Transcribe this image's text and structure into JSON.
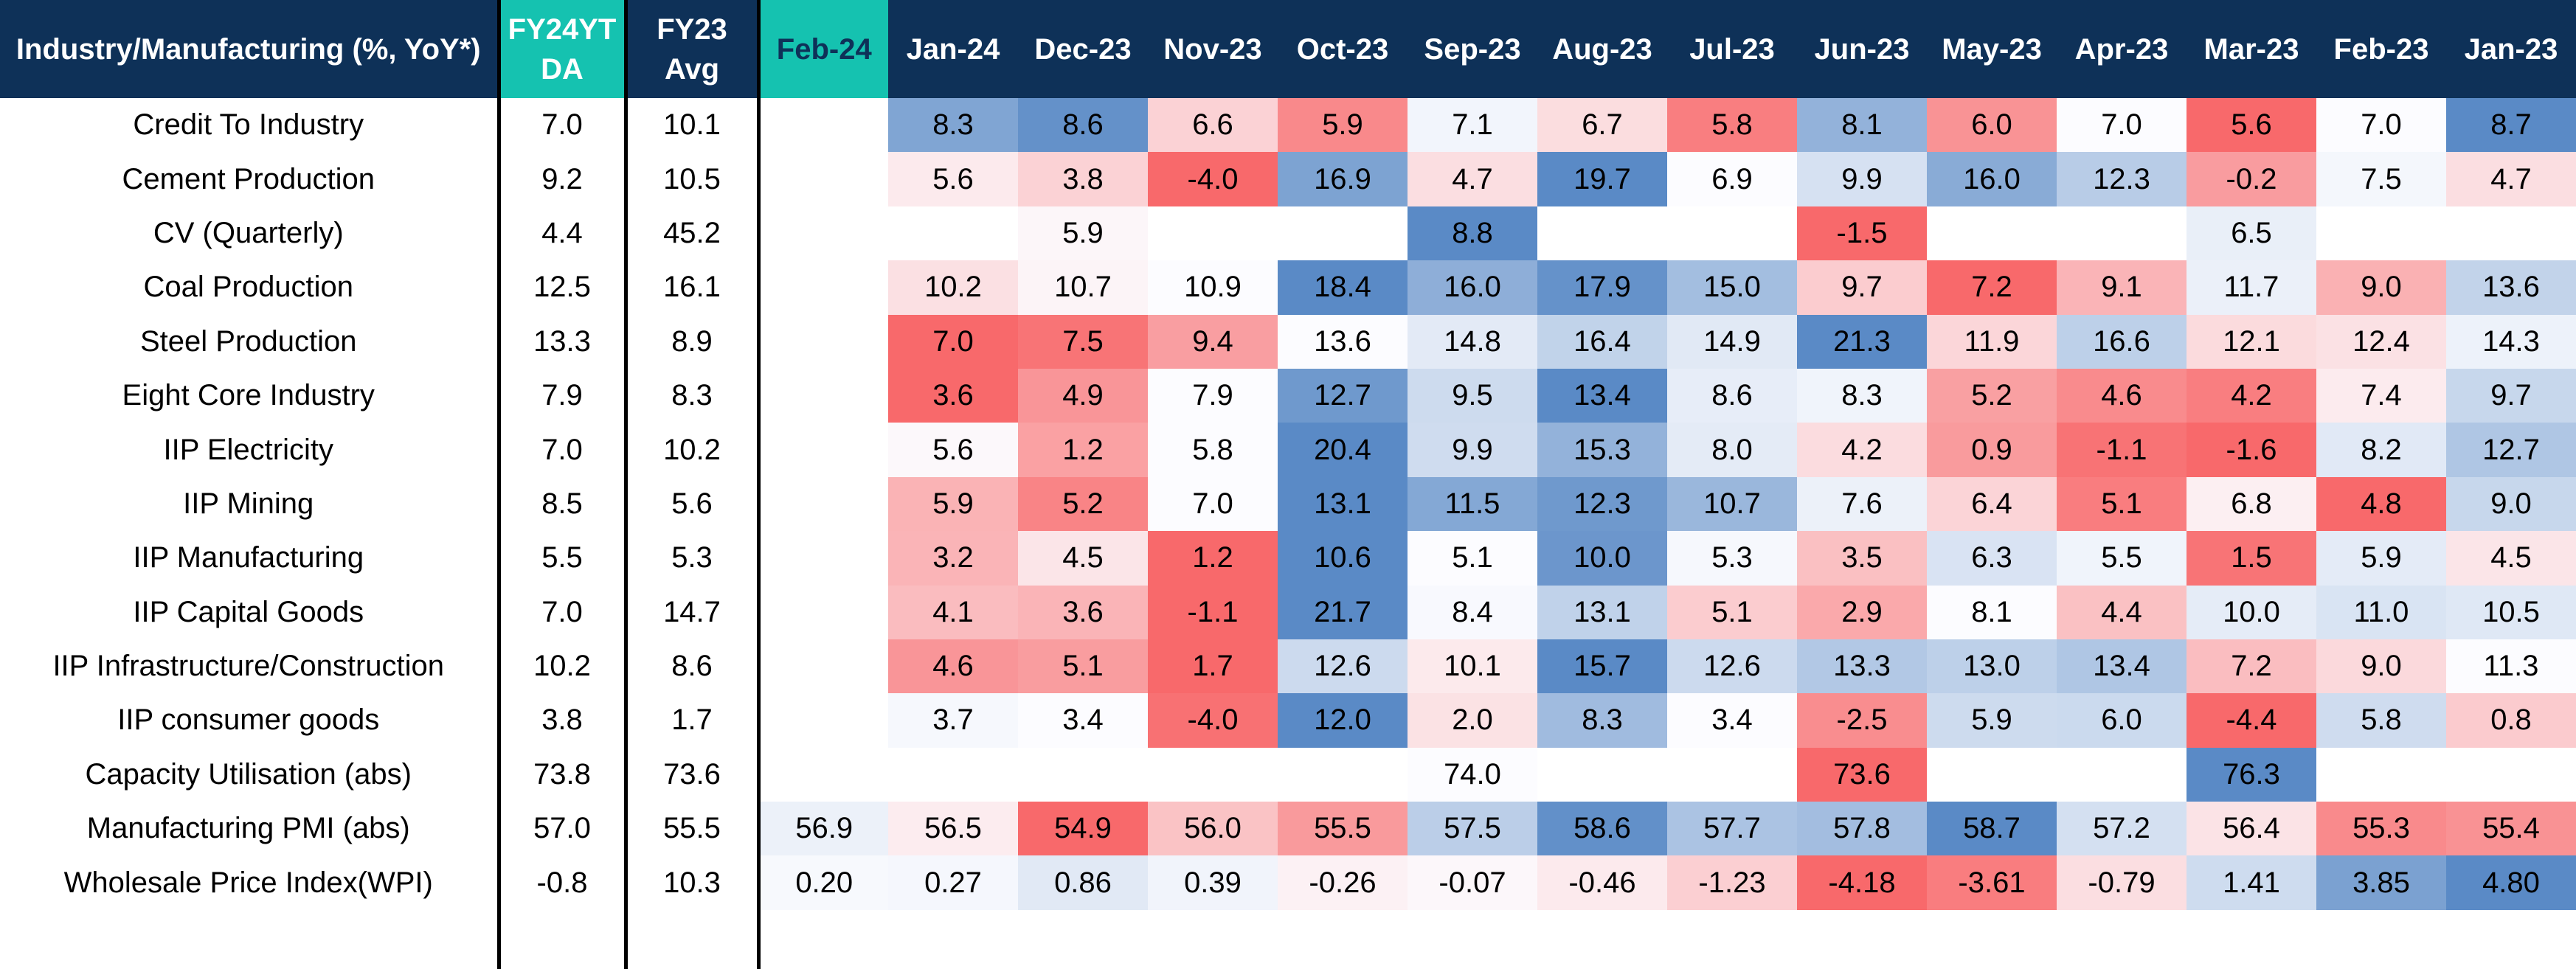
{
  "table": {
    "header": {
      "indicator": "Industry/Manufacturing (%, YoY*)",
      "fy24": "FY24YTDA",
      "fy23": "FY23 Avg",
      "months": [
        "Feb-24",
        "Jan-24",
        "Dec-23",
        "Nov-23",
        "Oct-23",
        "Sep-23",
        "Aug-23",
        "Jul-23",
        "Jun-23",
        "May-23",
        "Apr-23",
        "Mar-23",
        "Feb-23",
        "Jan-23"
      ]
    },
    "rows": [
      {
        "label": "Credit To Industry",
        "fy24": "7.0",
        "fy23": "10.1",
        "values": [
          "",
          "8.3",
          "8.6",
          "6.6",
          "5.9",
          "7.1",
          "6.7",
          "5.8",
          "8.1",
          "6.0",
          "7.0",
          "5.6",
          "7.0",
          "8.7"
        ]
      },
      {
        "label": "Cement Production",
        "fy24": "9.2",
        "fy23": "10.5",
        "values": [
          "",
          "5.6",
          "3.8",
          "-4.0",
          "16.9",
          "4.7",
          "19.7",
          "6.9",
          "9.9",
          "16.0",
          "12.3",
          "-0.2",
          "7.5",
          "4.7"
        ]
      },
      {
        "label": "CV (Quarterly)",
        "fy24": "4.4",
        "fy23": "45.2",
        "values": [
          "",
          "",
          "5.9",
          "",
          "",
          "8.8",
          "",
          "",
          "-1.5",
          "",
          "",
          "6.5",
          "",
          ""
        ]
      },
      {
        "label": "Coal Production",
        "fy24": "12.5",
        "fy23": "16.1",
        "values": [
          "",
          "10.2",
          "10.7",
          "10.9",
          "18.4",
          "16.0",
          "17.9",
          "15.0",
          "9.7",
          "7.2",
          "9.1",
          "11.7",
          "9.0",
          "13.6"
        ]
      },
      {
        "label": "Steel Production",
        "fy24": "13.3",
        "fy23": "8.9",
        "values": [
          "",
          "7.0",
          "7.5",
          "9.4",
          "13.6",
          "14.8",
          "16.4",
          "14.9",
          "21.3",
          "11.9",
          "16.6",
          "12.1",
          "12.4",
          "14.3"
        ]
      },
      {
        "label": "Eight Core Industry",
        "fy24": "7.9",
        "fy23": "8.3",
        "values": [
          "",
          "3.6",
          "4.9",
          "7.9",
          "12.7",
          "9.5",
          "13.4",
          "8.6",
          "8.3",
          "5.2",
          "4.6",
          "4.2",
          "7.4",
          "9.7"
        ]
      },
      {
        "label": "IIP Electricity",
        "fy24": "7.0",
        "fy23": "10.2",
        "values": [
          "",
          "5.6",
          "1.2",
          "5.8",
          "20.4",
          "9.9",
          "15.3",
          "8.0",
          "4.2",
          "0.9",
          "-1.1",
          "-1.6",
          "8.2",
          "12.7"
        ]
      },
      {
        "label": "IIP Mining",
        "fy24": "8.5",
        "fy23": "5.6",
        "values": [
          "",
          "5.9",
          "5.2",
          "7.0",
          "13.1",
          "11.5",
          "12.3",
          "10.7",
          "7.6",
          "6.4",
          "5.1",
          "6.8",
          "4.8",
          "9.0"
        ]
      },
      {
        "label": "IIP Manufacturing",
        "fy24": "5.5",
        "fy23": "5.3",
        "values": [
          "",
          "3.2",
          "4.5",
          "1.2",
          "10.6",
          "5.1",
          "10.0",
          "5.3",
          "3.5",
          "6.3",
          "5.5",
          "1.5",
          "5.9",
          "4.5"
        ]
      },
      {
        "label": "IIP Capital Goods",
        "fy24": "7.0",
        "fy23": "14.7",
        "values": [
          "",
          "4.1",
          "3.6",
          "-1.1",
          "21.7",
          "8.4",
          "13.1",
          "5.1",
          "2.9",
          "8.1",
          "4.4",
          "10.0",
          "11.0",
          "10.5"
        ]
      },
      {
        "label": "IIP Infrastructure/Construction",
        "fy24": "10.2",
        "fy23": "8.6",
        "values": [
          "",
          "4.6",
          "5.1",
          "1.7",
          "12.6",
          "10.1",
          "15.7",
          "12.6",
          "13.3",
          "13.0",
          "13.4",
          "7.2",
          "9.0",
          "11.3"
        ]
      },
      {
        "label": "IIP consumer goods",
        "fy24": "3.8",
        "fy23": "1.7",
        "values": [
          "",
          "3.7",
          "3.4",
          "-4.0",
          "12.0",
          "2.0",
          "8.3",
          "3.4",
          "-2.5",
          "5.9",
          "6.0",
          "-4.4",
          "5.8",
          "0.8"
        ]
      },
      {
        "label": "Capacity Utilisation (abs)",
        "fy24": "73.8",
        "fy23": "73.6",
        "values": [
          "",
          "",
          "",
          "",
          "",
          "74.0",
          "",
          "",
          "73.6",
          "",
          "",
          "76.3",
          "",
          ""
        ]
      },
      {
        "label": "Manufacturing PMI (abs)",
        "fy24": "57.0",
        "fy23": "55.5",
        "values": [
          "56.9",
          "56.5",
          "54.9",
          "56.0",
          "55.5",
          "57.5",
          "58.6",
          "57.7",
          "57.8",
          "58.7",
          "57.2",
          "56.4",
          "55.3",
          "55.4"
        ]
      },
      {
        "label": "Wholesale Price Index(WPI)",
        "fy24": "-0.8",
        "fy23": "10.3",
        "values": [
          "0.20",
          "0.27",
          "0.86",
          "0.39",
          "-0.26",
          "-0.07",
          "-0.46",
          "-1.23",
          "-4.18",
          "-3.61",
          "-0.79",
          "1.41",
          "3.85",
          "4.80"
        ]
      }
    ]
  },
  "colors": {
    "header_navy": "#0e3158",
    "header_teal": "#15c2b0",
    "scale_low_red": "#f8696b",
    "scale_mid_white": "#fcfcff",
    "scale_high_blue": "#5a8ac6",
    "separator": "#000000"
  }
}
